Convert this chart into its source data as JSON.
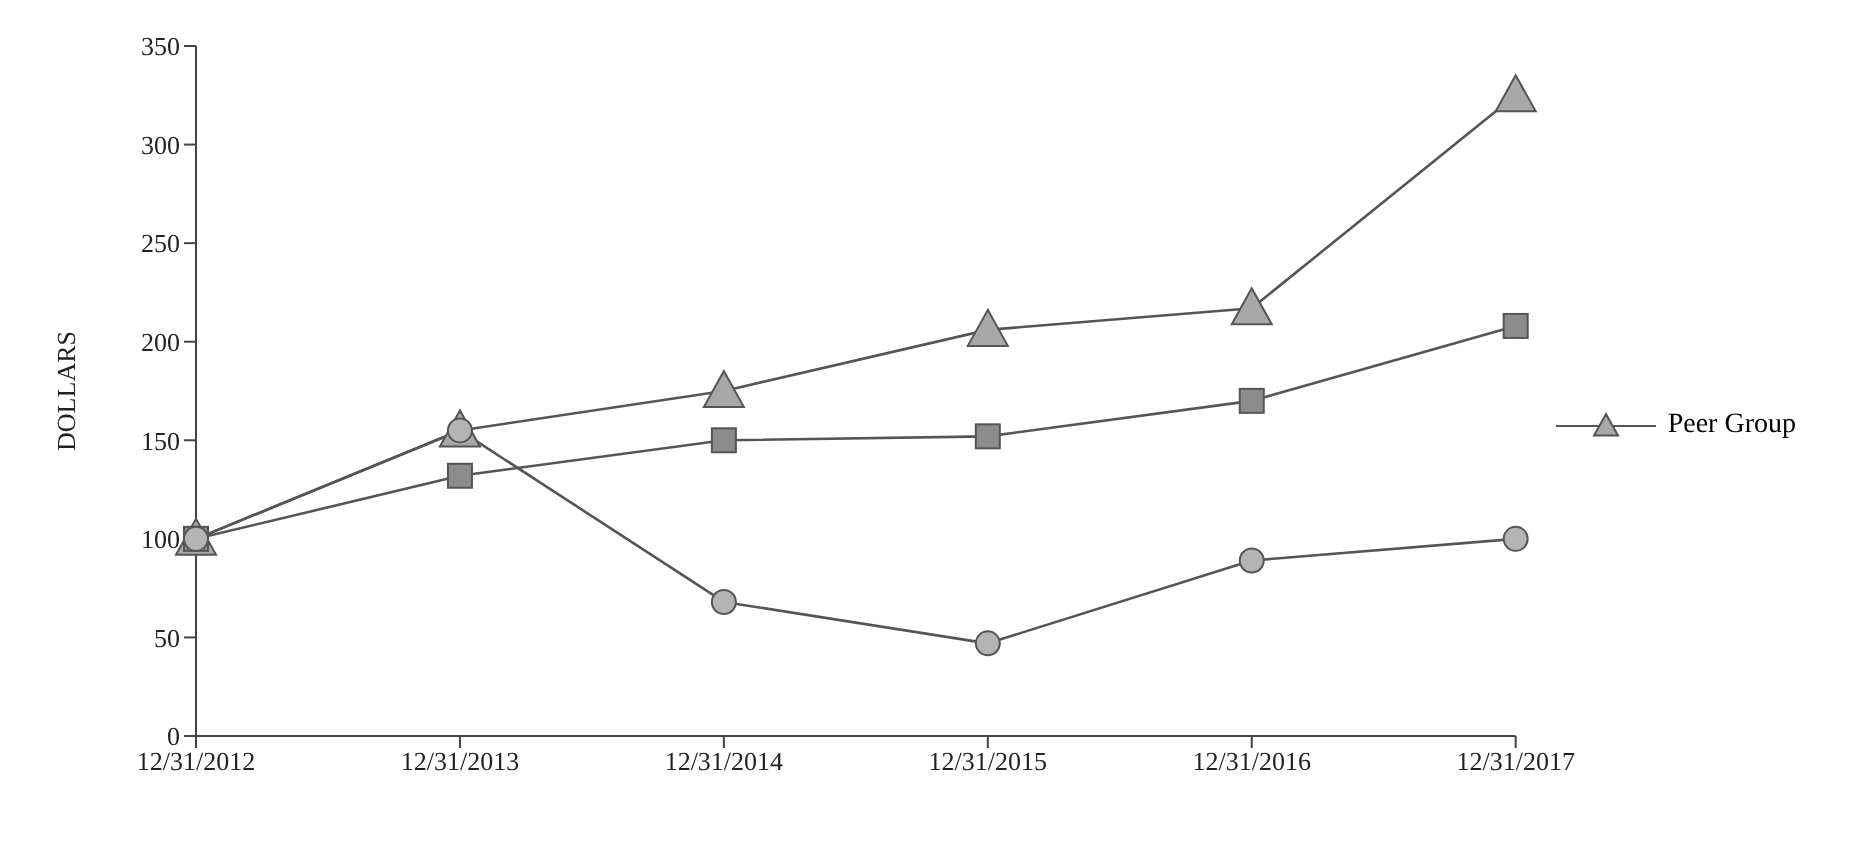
{
  "chart_data": {
    "type": "line",
    "ylabel": "DOLLARS",
    "categories": [
      "12/31/2012",
      "12/31/2013",
      "12/31/2014",
      "12/31/2015",
      "12/31/2016",
      "12/31/2017"
    ],
    "ylim": [
      0,
      350
    ],
    "yticks": [
      0,
      50,
      100,
      150,
      200,
      250,
      300,
      350
    ],
    "legend": "right",
    "series": [
      {
        "color": "#b4b4b4",
        "marker": "circle",
        "values": [
          100,
          155,
          68,
          47,
          89,
          100
        ]
      },
      {
        "color": "#8c8c8c",
        "marker": "square",
        "values": [
          100,
          132,
          150,
          152,
          170,
          208
        ]
      },
      {
        "name": "Peer Group",
        "color": "#a8a8a8",
        "marker": "triangle",
        "values": [
          100,
          155,
          175,
          206,
          217,
          325
        ]
      }
    ]
  }
}
